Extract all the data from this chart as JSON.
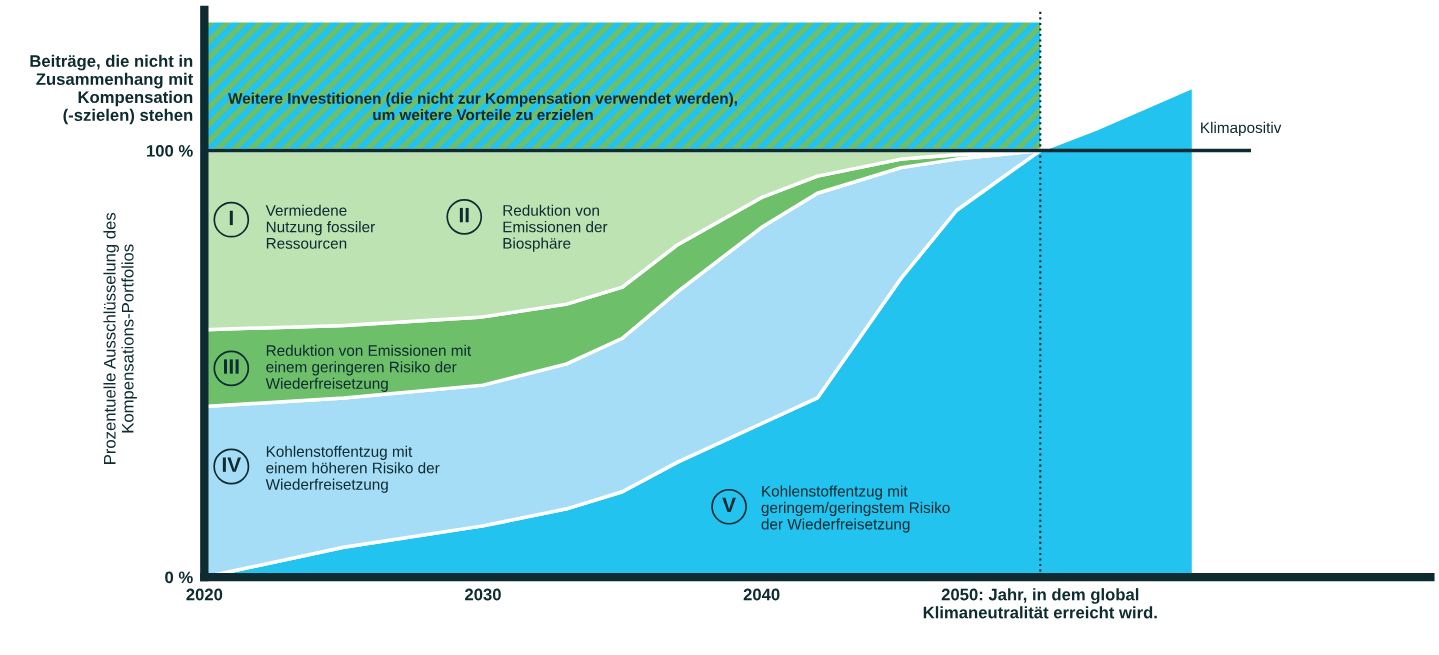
{
  "chart_data": {
    "type": "area",
    "stacked": true,
    "x": [
      2020,
      2025,
      2030,
      2033,
      2035,
      2037,
      2040,
      2042,
      2045,
      2047,
      2050
    ],
    "series": [
      {
        "color": "#22c3ee",
        "x": [
          2020,
          2025,
          2030,
          2033,
          2035,
          2037,
          2040,
          2042,
          2045,
          2047,
          2050,
          2052,
          2055.5
        ],
        "values": [
          0,
          7,
          12,
          16,
          20,
          27,
          36,
          42,
          70,
          86,
          100,
          105,
          115
        ]
      },
      {
        "color": "#a6ddf6",
        "values": [
          40,
          35,
          33,
          34,
          36,
          40,
          46,
          48,
          26,
          12,
          0
        ]
      },
      {
        "color": "#6dbf6a",
        "values": [
          18,
          17,
          16,
          14,
          12,
          11,
          7,
          4,
          2,
          1,
          0
        ]
      },
      {
        "color": "#bde3b2",
        "values": [
          42,
          41,
          39,
          36,
          32,
          22,
          11,
          6,
          2,
          1,
          0
        ]
      }
    ],
    "xlim": [
      2020,
      2064
    ],
    "ylim": [
      0,
      133
    ],
    "xticks": [
      2020,
      2030,
      2040,
      {
        "value": 2050,
        "label": "2050: Jahr, in dem global\nKlimaneutralität erreicht wird."
      }
    ],
    "yticks": [
      {
        "value": 0,
        "label": "0 %"
      },
      {
        "value": 100,
        "label": "100 %"
      },
      {
        "value": 115,
        "label": "Beiträge, die nicht in\nZusammenhang mit\nKompensation\n(-szielen) stehen"
      }
    ],
    "ylabel": "Prozentuelle Ausschlüsselung des\nKompensations-Portfolios",
    "grid": false,
    "legend": false,
    "bands": [
      {
        "axis": "y",
        "from": 100,
        "to": 130,
        "color": "#22c3ee",
        "label": "Weitere Investitionen (die nicht zur Kompensation verwendet werden),\num weitere Vorteile zu erzielen"
      }
    ],
    "ref_lines": [
      {
        "axis": "y",
        "value": 100,
        "color": "#0d2b30",
        "line_style": "solid"
      },
      {
        "axis": "x",
        "value": 2050,
        "color": "#0d2b30",
        "line_style": "dotted"
      }
    ],
    "annotations": [
      "I",
      "Vermiedene\nNutzung fossiler\nRessourcen",
      "II",
      "Reduktion von\nEmissionen der\nBiosphäre",
      "III",
      "Reduktion von Emissionen mit\neinem geringeren Risiko der\nWiederfreisetzung",
      "IV",
      "Kohlenstoffentzug mit\neinem höheren Risiko der\nWiederfreisetzung",
      "V",
      "Kohlenstoffentzug mit\ngeringem/geringstem Risiko\nder Wiederfreisetzung",
      "Klimapositiv"
    ]
  }
}
